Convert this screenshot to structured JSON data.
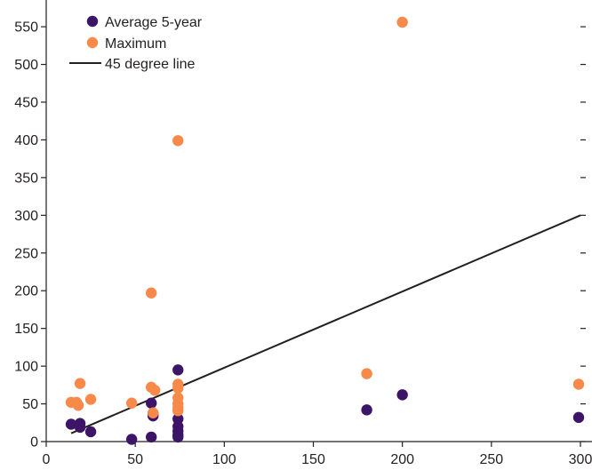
{
  "chart_data": {
    "type": "scatter",
    "title": "",
    "xlabel": "",
    "ylabel": "",
    "xlim": [
      0,
      300
    ],
    "ylim": [
      0,
      560
    ],
    "xticks": [
      0,
      50,
      100,
      150,
      200,
      250,
      300
    ],
    "yticks": [
      0,
      50,
      100,
      150,
      200,
      250,
      300,
      350,
      400,
      450,
      500,
      550
    ],
    "grid": false,
    "legend_position": "top-left",
    "series": [
      {
        "name": "Average 5-year",
        "color": "#3d1566",
        "points": [
          [
            14,
            23
          ],
          [
            19,
            24
          ],
          [
            19,
            19
          ],
          [
            25,
            13
          ],
          [
            48,
            3
          ],
          [
            59,
            6
          ],
          [
            59,
            51
          ],
          [
            60,
            37
          ],
          [
            60,
            34
          ],
          [
            74,
            95
          ],
          [
            74,
            30
          ],
          [
            74,
            20
          ],
          [
            74,
            14
          ],
          [
            74,
            9
          ],
          [
            74,
            6
          ],
          [
            180,
            42
          ],
          [
            200,
            62
          ],
          [
            299,
            32
          ]
        ]
      },
      {
        "name": "Maximum",
        "color": "#f7894a",
        "points": [
          [
            14,
            52
          ],
          [
            17,
            52
          ],
          [
            18,
            48
          ],
          [
            19,
            77
          ],
          [
            25,
            56
          ],
          [
            48,
            51
          ],
          [
            59,
            197
          ],
          [
            59,
            72
          ],
          [
            60,
            38
          ],
          [
            61,
            68
          ],
          [
            74,
            399
          ],
          [
            74,
            76
          ],
          [
            74,
            71
          ],
          [
            74,
            58
          ],
          [
            74,
            50
          ],
          [
            74,
            45
          ],
          [
            74,
            41
          ],
          [
            180,
            90
          ],
          [
            200,
            556
          ],
          [
            299,
            76
          ]
        ]
      },
      {
        "name": "45 degree line",
        "color": "#231f20",
        "style": "line",
        "points": [
          [
            14,
            11
          ],
          [
            300,
            300
          ]
        ]
      }
    ]
  }
}
